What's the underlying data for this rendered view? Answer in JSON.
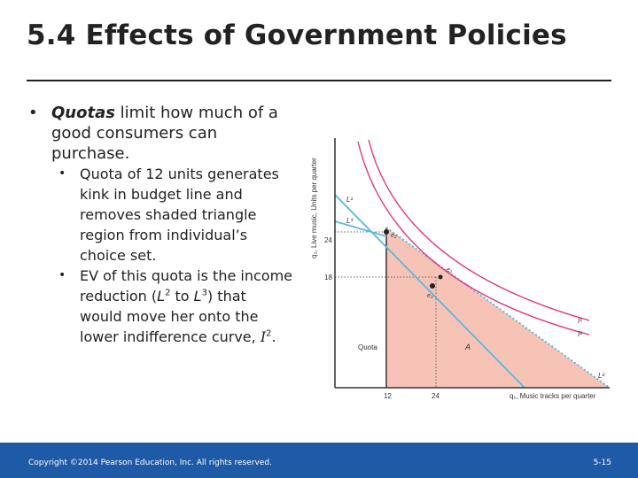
{
  "slide": {
    "title": "5.4 Effects of Government Policies",
    "bullet1": {
      "term": "Quotas",
      "rest": " limit how much of a good consumers can purchase."
    },
    "sub1": "Quota of 12 units generates kink in budget line and removes shaded triangle region from individual’s choice set.",
    "sub2": {
      "part1": "EV of this quota is the income reduction (",
      "l2": "L",
      "l2_sup": "2",
      "part2": " to ",
      "l3": "L",
      "l3_sup": "3",
      "part3": ")  that would move her onto the lower indifference curve, ",
      "i2": "I",
      "i2_sup": "2",
      "part4": "."
    }
  },
  "diagram": {
    "y_axis_label": "q₂, Live music, Units per quarter",
    "x_axis_label": "q₁, Music tracks per quarter",
    "y_ticks": [
      "24",
      "18"
    ],
    "x_ticks": [
      "12",
      "24"
    ],
    "line_labels": {
      "L1": "L¹",
      "L3": "L³",
      "L2": "L²"
    },
    "curve_labels": {
      "I1": "I¹",
      "I2": "I²"
    },
    "points": {
      "e2": "e₂",
      "e1": "e₁",
      "e3": "e₃"
    },
    "region_labels": {
      "quota": "Quota",
      "A": "A"
    },
    "colors": {
      "shaded": "#f7c3b6",
      "budget": "#5bb8e0",
      "indifference": "#e0357d",
      "axis": "#333333"
    }
  },
  "footer": {
    "copyright": "Copyright ©2014 Pearson Education, Inc. All rights reserved.",
    "page": "5-15"
  }
}
